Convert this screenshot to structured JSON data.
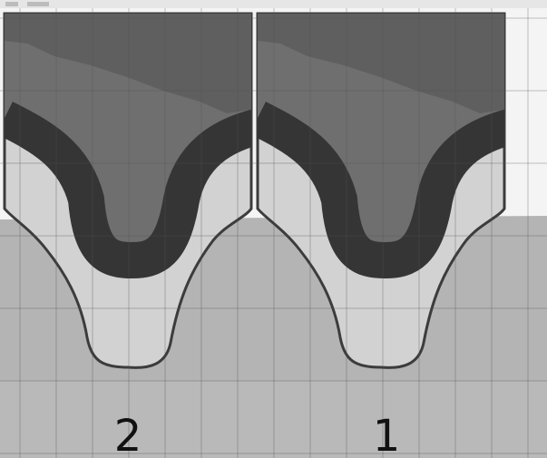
{
  "labels": [
    "2",
    "1"
  ]
}
